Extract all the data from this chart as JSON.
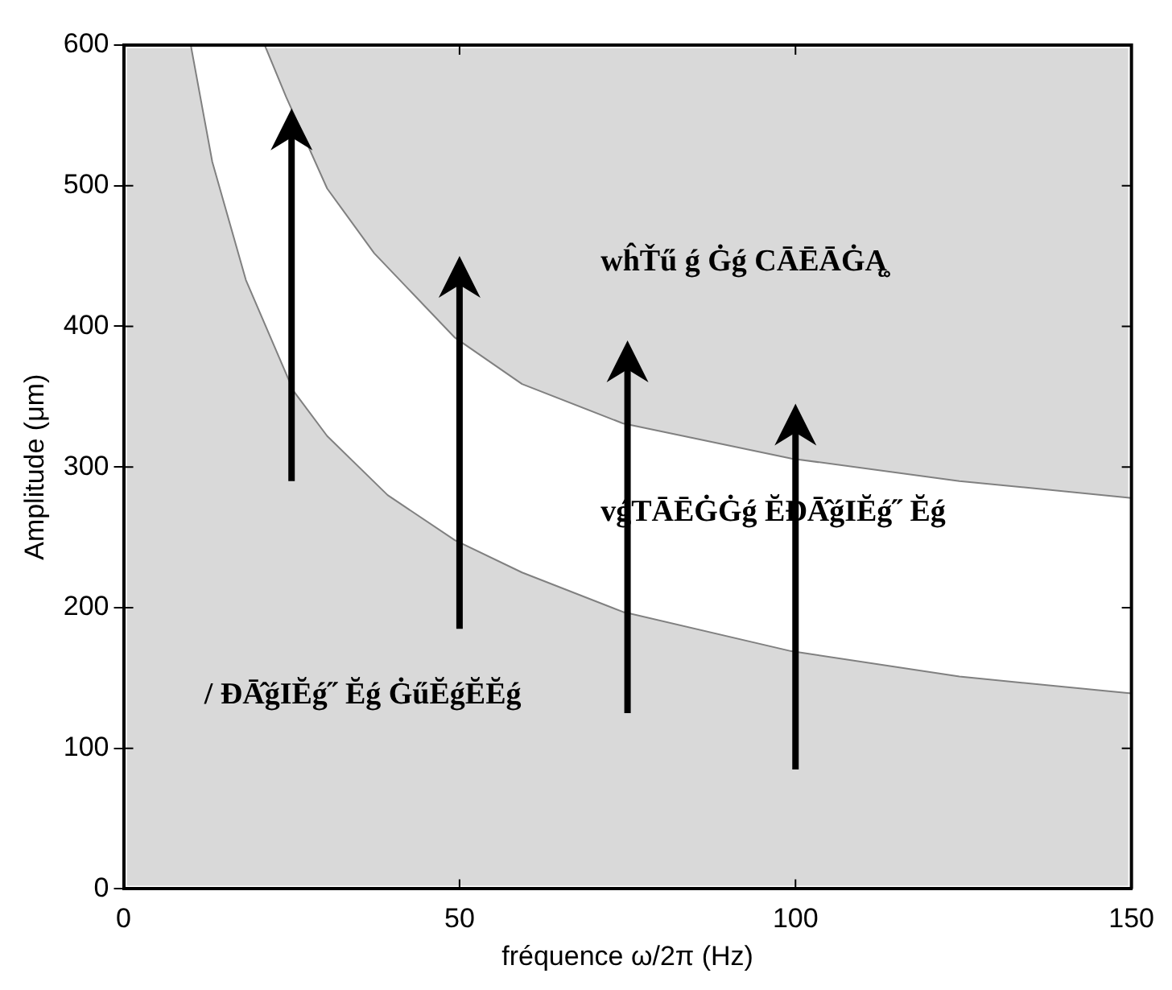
{
  "chart_data": {
    "type": "line",
    "xlabel": "fréquence ω/2π (Hz)",
    "ylabel": "Amplitude (μm)",
    "xlim": [
      0,
      150
    ],
    "xticks": [
      0,
      50,
      100,
      150
    ],
    "ylim": [
      0,
      600
    ],
    "yticks": [
      0,
      100,
      200,
      300,
      400,
      500,
      600
    ],
    "grid": false,
    "legend": false,
    "marker": "none",
    "series": [
      {
        "color": "#808080",
        "x": [
          21,
          24.2,
          30.3,
          37.3,
          49.3,
          59.3,
          74.3,
          99.4,
          124.4,
          150
        ],
        "values": [
          600,
          563,
          498,
          452,
          392,
          359,
          331,
          306,
          290,
          278
        ]
      },
      {
        "color": "#808080",
        "x": [
          10,
          13.2,
          18.2,
          25.3,
          30.3,
          39.3,
          49.3,
          59.3,
          74.3,
          99.4,
          124.4,
          150
        ],
        "values": [
          600,
          517,
          433,
          354,
          322,
          280,
          248,
          225,
          197,
          169,
          151,
          139
        ]
      }
    ],
    "annotations": [
      "wĥŤű ǵ Ġǵ CĀĒĀĠĄ̥",
      "vǵTĀĒĠĠǵ ĔĐĀ̂ǵIĔǵ˝ Ĕǵ",
      "/ ĐĀ̂ǵIĔǵ˝ Ĕǵ ĠűĔǵĔĔǵ"
    ]
  }
}
